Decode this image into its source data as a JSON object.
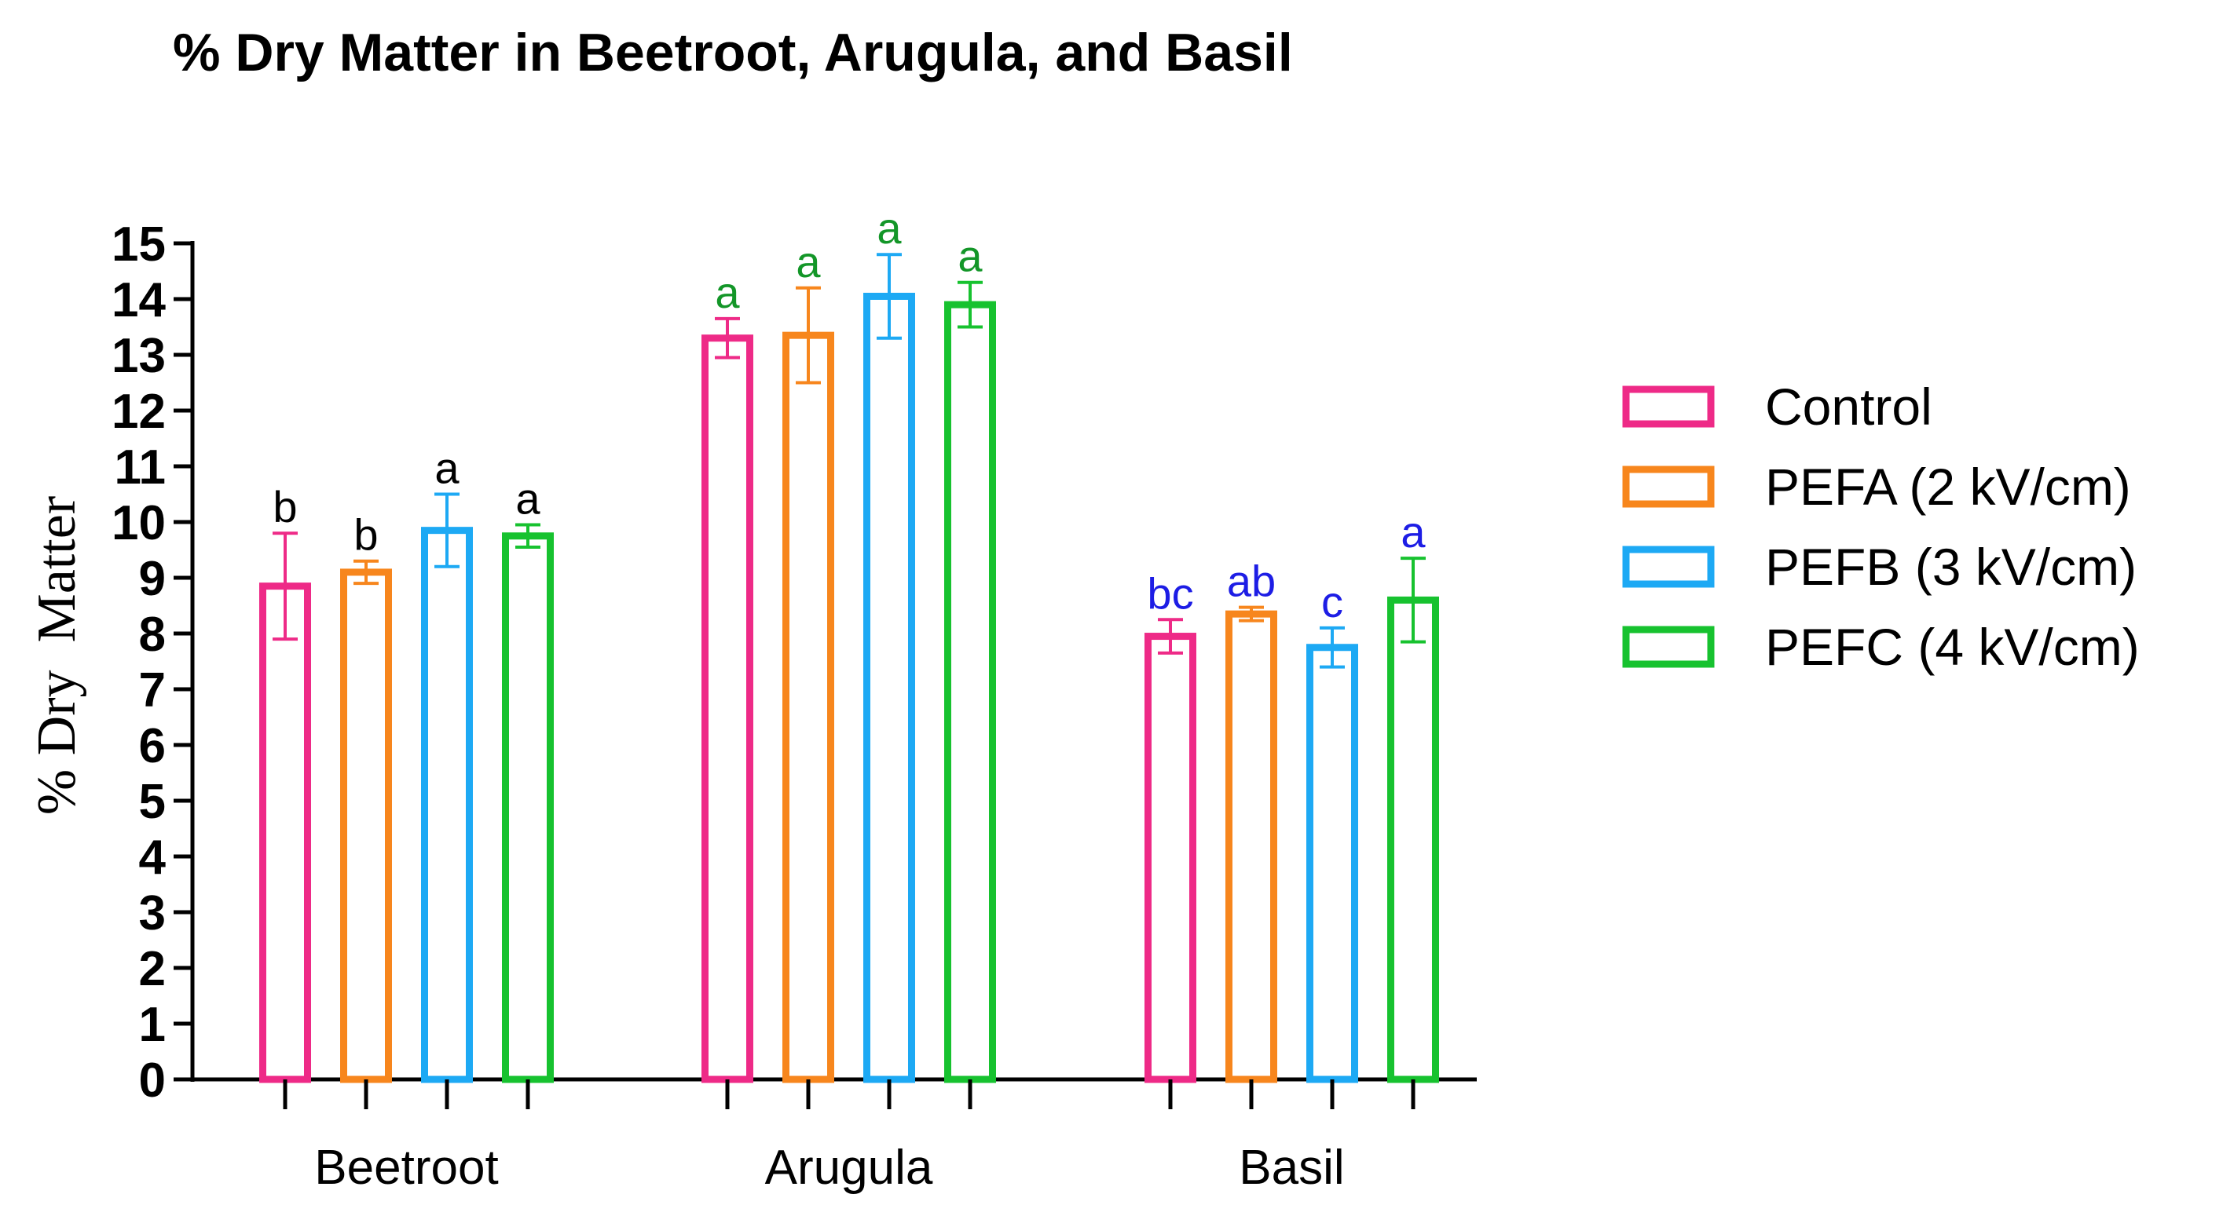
{
  "chart_data": {
    "type": "bar",
    "title": "% Dry Matter in Beetroot, Arugula, and Basil",
    "xlabel": "",
    "ylabel": "% Dry  Matter",
    "ylim": [
      0,
      15
    ],
    "yticks": [
      "0",
      "1",
      "2",
      "3",
      "4",
      "5",
      "6",
      "7",
      "8",
      "9",
      "10",
      "11",
      "12",
      "13",
      "14",
      "15"
    ],
    "categories": [
      "Beetroot",
      "Arugula",
      "Basil"
    ],
    "grid": false,
    "legend_position": "right",
    "series": [
      {
        "name": "Control",
        "color": "#EE2A87",
        "values": [
          8.85,
          13.3,
          7.95
        ],
        "errors": [
          0.95,
          0.35,
          0.3
        ],
        "sig_labels": [
          "b",
          "a",
          "bc"
        ]
      },
      {
        "name": "PEFA (2 kV/cm)",
        "color": "#F7861D",
        "values": [
          9.1,
          13.35,
          8.35
        ],
        "errors": [
          0.2,
          0.85,
          0.12
        ],
        "sig_labels": [
          "b",
          "a",
          "ab"
        ]
      },
      {
        "name": "PEFB (3 kV/cm)",
        "color": "#1DA9F4",
        "values": [
          9.85,
          14.05,
          7.75
        ],
        "errors": [
          0.65,
          0.75,
          0.35
        ],
        "sig_labels": [
          "a",
          "a",
          "c"
        ]
      },
      {
        "name": "PEFC (4 kV/cm)",
        "color": "#17C22F",
        "values": [
          9.75,
          13.9,
          8.6
        ],
        "errors": [
          0.2,
          0.4,
          0.75
        ],
        "sig_labels": [
          "a",
          "a",
          "a"
        ]
      }
    ],
    "sig_label_colors": [
      "#000000",
      "#139628",
      "#1D1DE5"
    ]
  }
}
